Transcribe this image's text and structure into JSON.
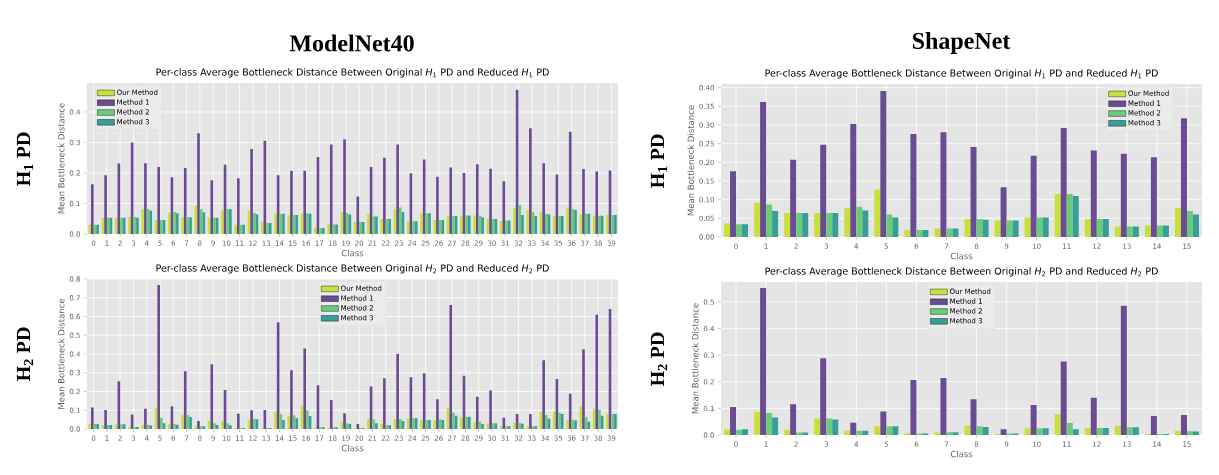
{
  "chart_data": [
    {
      "type": "bar",
      "title": "Per-class Average Bottleneck Distance Between Original *H*$_{1}$ PD and Reduced *H*$_{1}$ PD",
      "xlabel": "Class",
      "ylabel": "Mean Bottleneck Distance",
      "categories": [
        "0",
        "1",
        "2",
        "3",
        "4",
        "5",
        "6",
        "7",
        "8",
        "9",
        "10",
        "11",
        "12",
        "13",
        "14",
        "15",
        "16",
        "17",
        "18",
        "19",
        "20",
        "21",
        "22",
        "23",
        "24",
        "25",
        "26",
        "27",
        "28",
        "29",
        "30",
        "31",
        "32",
        "33",
        "34",
        "35",
        "36",
        "37",
        "38",
        "39"
      ],
      "series": [
        {
          "name": "Our Method",
          "color": "#c8e03c",
          "values": [
            0.03,
            0.053,
            0.053,
            0.056,
            0.082,
            0.046,
            0.07,
            0.055,
            0.093,
            0.053,
            0.079,
            0.03,
            0.076,
            0.039,
            0.066,
            0.061,
            0.066,
            0.021,
            0.031,
            0.072,
            0.039,
            0.065,
            0.049,
            0.082,
            0.042,
            0.068,
            0.046,
            0.059,
            0.06,
            0.061,
            0.049,
            0.043,
            0.085,
            0.078,
            0.072,
            0.059,
            0.087,
            0.065,
            0.06,
            0.062
          ]
        },
        {
          "name": "Method 1",
          "color": "#6b4c93",
          "values": [
            0.163,
            0.193,
            0.231,
            0.3,
            0.232,
            0.22,
            0.186,
            0.216,
            0.33,
            0.176,
            0.227,
            0.183,
            0.279,
            0.306,
            0.193,
            0.207,
            0.207,
            0.252,
            0.293,
            0.311,
            0.123,
            0.22,
            0.25,
            0.293,
            0.199,
            0.244,
            0.188,
            0.218,
            0.2,
            0.229,
            0.214,
            0.173,
            0.473,
            0.347,
            0.232,
            0.195,
            0.335,
            0.213,
            0.205,
            0.208
          ]
        },
        {
          "name": "Method 2",
          "color": "#6acc7a",
          "values": [
            0.03,
            0.053,
            0.053,
            0.056,
            0.082,
            0.046,
            0.072,
            0.055,
            0.082,
            0.053,
            0.082,
            0.03,
            0.069,
            0.036,
            0.066,
            0.062,
            0.068,
            0.02,
            0.031,
            0.069,
            0.039,
            0.057,
            0.049,
            0.087,
            0.042,
            0.068,
            0.046,
            0.059,
            0.061,
            0.06,
            0.049,
            0.044,
            0.095,
            0.072,
            0.066,
            0.059,
            0.082,
            0.066,
            0.06,
            0.062
          ]
        },
        {
          "name": "Method 3",
          "color": "#3a9e98",
          "values": [
            0.03,
            0.053,
            0.053,
            0.053,
            0.076,
            0.046,
            0.068,
            0.055,
            0.071,
            0.053,
            0.081,
            0.03,
            0.065,
            0.036,
            0.066,
            0.062,
            0.066,
            0.02,
            0.031,
            0.064,
            0.039,
            0.057,
            0.049,
            0.072,
            0.042,
            0.068,
            0.046,
            0.059,
            0.061,
            0.055,
            0.049,
            0.044,
            0.062,
            0.059,
            0.064,
            0.059,
            0.079,
            0.066,
            0.06,
            0.062
          ]
        }
      ],
      "ylim": [
        0,
        0.495
      ],
      "yticks": [
        {
          "value": 0,
          "label": "0.0"
        },
        {
          "value": 0.1,
          "label": "0.1"
        },
        {
          "value": 0.2,
          "label": "0.2"
        },
        {
          "value": 0.3,
          "label": "0.3"
        },
        {
          "value": 0.4,
          "label": "0.4"
        }
      ],
      "grid": true,
      "legend": "top left",
      "annotations": [
        "ModelNet40",
        "H$_{1}$ PD"
      ]
    },
    {
      "type": "bar",
      "title": "Per-class Average Bottleneck Distance Between Original *H*$_{2}$ PD and Reduced *H*$_{2}$ PD",
      "xlabel": "Class",
      "ylabel": "Mean Bottleneck Distance",
      "categories": [
        "0",
        "1",
        "2",
        "3",
        "4",
        "5",
        "6",
        "7",
        "8",
        "9",
        "10",
        "11",
        "12",
        "13",
        "14",
        "15",
        "16",
        "17",
        "18",
        "19",
        "20",
        "21",
        "22",
        "23",
        "24",
        "25",
        "26",
        "27",
        "28",
        "29",
        "30",
        "31",
        "32",
        "33",
        "34",
        "35",
        "36",
        "37",
        "38",
        "39"
      ],
      "series": [
        {
          "name": "Our Method",
          "color": "#c8e03c",
          "values": [
            0.027,
            0.021,
            0.025,
            0.011,
            0.023,
            0.114,
            0.027,
            0.075,
            0.014,
            0.044,
            0.043,
            0.005,
            0.05,
            0.005,
            0.094,
            0.071,
            0.123,
            0.009,
            0.007,
            0.037,
            0.005,
            0.053,
            0.028,
            0.053,
            0.057,
            0.048,
            0.048,
            0.114,
            0.064,
            0.034,
            0.028,
            0.016,
            0.032,
            0.014,
            0.091,
            0.094,
            0.048,
            0.121,
            0.108,
            0.08
          ]
        },
        {
          "name": "Method 1",
          "color": "#6b4c93",
          "values": [
            0.114,
            0.101,
            0.254,
            0.078,
            0.108,
            0.768,
            0.121,
            0.308,
            0.043,
            0.345,
            0.208,
            0.082,
            0.1,
            0.101,
            0.569,
            0.313,
            0.43,
            0.233,
            0.155,
            0.084,
            0.027,
            0.226,
            0.27,
            0.4,
            0.276,
            0.297,
            0.158,
            0.661,
            0.284,
            0.172,
            0.206,
            0.06,
            0.08,
            0.08,
            0.366,
            0.267,
            0.188,
            0.425,
            0.61,
            0.64
          ]
        },
        {
          "name": "Method 2",
          "color": "#6acc7a",
          "values": [
            0.027,
            0.021,
            0.025,
            0.011,
            0.023,
            0.06,
            0.027,
            0.075,
            0.014,
            0.03,
            0.03,
            0.005,
            0.053,
            0.005,
            0.08,
            0.073,
            0.098,
            0.009,
            0.009,
            0.03,
            0.005,
            0.052,
            0.021,
            0.053,
            0.057,
            0.048,
            0.052,
            0.087,
            0.066,
            0.039,
            0.03,
            0.014,
            0.032,
            0.014,
            0.075,
            0.087,
            0.05,
            0.064,
            0.103,
            0.08
          ]
        },
        {
          "name": "Method 3",
          "color": "#3a9e98",
          "values": [
            0.027,
            0.021,
            0.025,
            0.011,
            0.02,
            0.03,
            0.023,
            0.064,
            0.014,
            0.021,
            0.02,
            0.005,
            0.052,
            0.005,
            0.048,
            0.057,
            0.069,
            0.009,
            0.009,
            0.027,
            0.005,
            0.03,
            0.02,
            0.043,
            0.057,
            0.048,
            0.048,
            0.071,
            0.066,
            0.027,
            0.03,
            0.014,
            0.028,
            0.014,
            0.055,
            0.082,
            0.046,
            0.039,
            0.071,
            0.08
          ]
        }
      ],
      "ylim": [
        0,
        0.8
      ],
      "yticks": [
        {
          "value": 0,
          "label": "0.0"
        },
        {
          "value": 0.1,
          "label": "0.1"
        },
        {
          "value": 0.2,
          "label": "0.2"
        },
        {
          "value": 0.3,
          "label": "0.3"
        },
        {
          "value": 0.4,
          "label": "0.4"
        },
        {
          "value": 0.5,
          "label": "0.5"
        },
        {
          "value": 0.6,
          "label": "0.6"
        },
        {
          "value": 0.7,
          "label": "0.7"
        },
        {
          "value": 0.8,
          "label": "0.8"
        }
      ],
      "grid": true,
      "legend": "top",
      "annotations": [
        "H$_{2}$ PD"
      ]
    },
    {
      "type": "bar",
      "title": "Per-class Average Bottleneck Distance Between Original *H*$_{1}$ PD and Reduced *H*$_{1}$ PD",
      "xlabel": "Class",
      "ylabel": "Mean Bottleneck Distance",
      "categories": [
        "0",
        "1",
        "2",
        "3",
        "4",
        "5",
        "6",
        "7",
        "8",
        "9",
        "10",
        "11",
        "12",
        "13",
        "14",
        "15"
      ],
      "series": [
        {
          "name": "Our Method",
          "color": "#c8e03c",
          "values": [
            0.036,
            0.092,
            0.064,
            0.064,
            0.077,
            0.127,
            0.019,
            0.023,
            0.048,
            0.044,
            0.052,
            0.115,
            0.048,
            0.028,
            0.031,
            0.078
          ]
        },
        {
          "name": "Method 1",
          "color": "#6b4c93",
          "values": [
            0.176,
            0.362,
            0.207,
            0.247,
            0.303,
            0.391,
            0.276,
            0.281,
            0.241,
            0.133,
            0.218,
            0.292,
            0.232,
            0.223,
            0.214,
            0.318
          ]
        },
        {
          "name": "Method 2",
          "color": "#6acc7a",
          "values": [
            0.034,
            0.087,
            0.064,
            0.064,
            0.081,
            0.06,
            0.019,
            0.023,
            0.048,
            0.044,
            0.052,
            0.115,
            0.048,
            0.028,
            0.031,
            0.07
          ]
        },
        {
          "name": "Method 3",
          "color": "#3a9e98",
          "values": [
            0.034,
            0.07,
            0.064,
            0.064,
            0.071,
            0.052,
            0.019,
            0.023,
            0.046,
            0.044,
            0.052,
            0.11,
            0.048,
            0.028,
            0.031,
            0.06
          ]
        }
      ],
      "ylim": [
        0,
        0.41
      ],
      "yticks": [
        {
          "value": 0,
          "label": "0.00"
        },
        {
          "value": 0.05,
          "label": "0.05"
        },
        {
          "value": 0.1,
          "label": "0.10"
        },
        {
          "value": 0.15,
          "label": "0.15"
        },
        {
          "value": 0.2,
          "label": "0.20"
        },
        {
          "value": 0.25,
          "label": "0.25"
        },
        {
          "value": 0.3,
          "label": "0.30"
        },
        {
          "value": 0.35,
          "label": "0.35"
        },
        {
          "value": 0.4,
          "label": "0.40"
        }
      ],
      "grid": true,
      "legend": "top right",
      "annotations": [
        "ShapeNet",
        "H$_{1}$ PD"
      ]
    },
    {
      "type": "bar",
      "title": "Per-class Average Bottleneck Distance Between Original *H*$_{2}$ PD and Reduced *H*$_{2}$ PD",
      "xlabel": "Class",
      "ylabel": "Mean Bottleneck Distance",
      "categories": [
        "0",
        "1",
        "2",
        "3",
        "4",
        "5",
        "6",
        "7",
        "8",
        "9",
        "10",
        "11",
        "12",
        "13",
        "14",
        "15"
      ],
      "series": [
        {
          "name": "Our Method",
          "color": "#c8e03c",
          "values": [
            0.022,
            0.087,
            0.02,
            0.062,
            0.016,
            0.033,
            0.006,
            0.01,
            0.036,
            0.004,
            0.025,
            0.079,
            0.026,
            0.035,
            0.004,
            0.016
          ]
        },
        {
          "name": "Method 1",
          "color": "#6b4c93",
          "values": [
            0.105,
            0.552,
            0.116,
            0.288,
            0.046,
            0.088,
            0.207,
            0.214,
            0.134,
            0.022,
            0.113,
            0.276,
            0.14,
            0.486,
            0.071,
            0.075
          ]
        },
        {
          "name": "Method 2",
          "color": "#6acc7a",
          "values": [
            0.02,
            0.084,
            0.009,
            0.062,
            0.016,
            0.033,
            0.006,
            0.01,
            0.033,
            0.006,
            0.025,
            0.045,
            0.026,
            0.029,
            0.004,
            0.014
          ]
        },
        {
          "name": "Method 3",
          "color": "#3a9e98",
          "values": [
            0.022,
            0.066,
            0.009,
            0.058,
            0.016,
            0.033,
            0.006,
            0.01,
            0.03,
            0.006,
            0.025,
            0.022,
            0.026,
            0.029,
            0.004,
            0.013
          ]
        }
      ],
      "ylim": [
        0,
        0.575
      ],
      "yticks": [
        {
          "value": 0,
          "label": "0.0"
        },
        {
          "value": 0.1,
          "label": "0.1"
        },
        {
          "value": 0.2,
          "label": "0.2"
        },
        {
          "value": 0.3,
          "label": "0.3"
        },
        {
          "value": 0.4,
          "label": "0.4"
        },
        {
          "value": 0.5,
          "label": "0.5"
        }
      ],
      "grid": true,
      "legend": "top",
      "annotations": [
        "H$_{2}$ PD"
      ]
    }
  ]
}
